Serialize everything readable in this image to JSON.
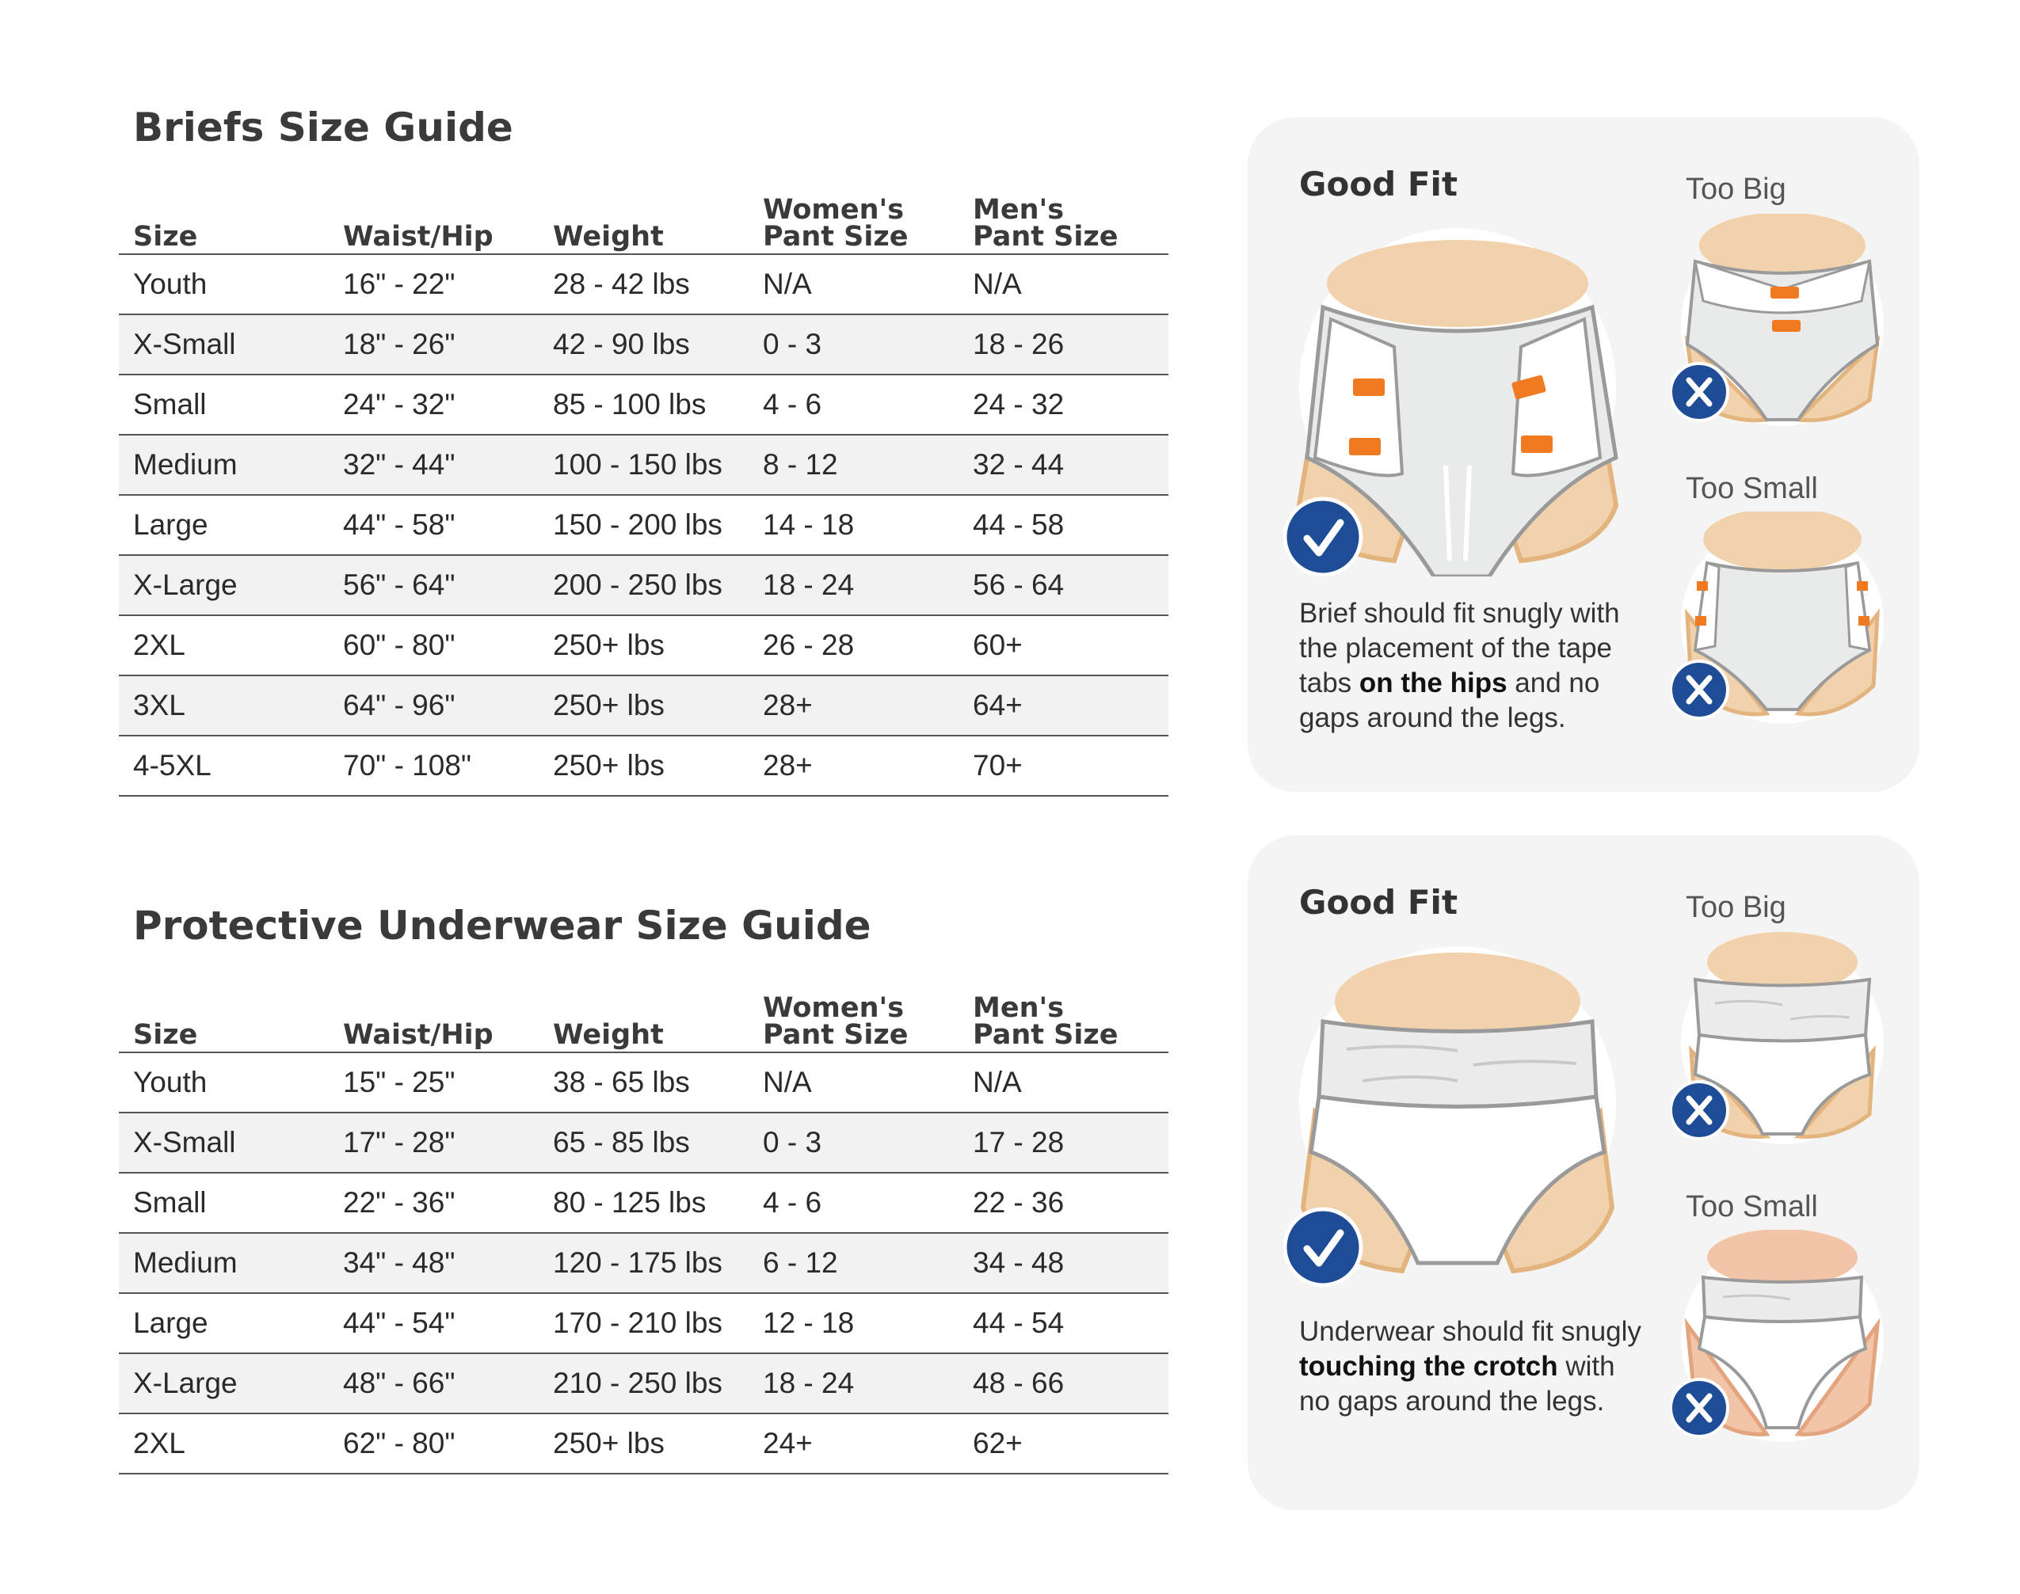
{
  "briefs": {
    "title": "Briefs Size Guide",
    "headers": [
      "Size",
      "Waist/Hip",
      "Weight",
      "Women's Pant Size",
      "Men's Pant Size"
    ],
    "rows": [
      [
        "Youth",
        "16\" - 22\"",
        "28 - 42 lbs",
        "N/A",
        "N/A"
      ],
      [
        "X-Small",
        "18\" - 26\"",
        "42 - 90 lbs",
        "0 - 3",
        "18 - 26"
      ],
      [
        "Small",
        "24\" - 32\"",
        "85 - 100 lbs",
        "4 - 6",
        "24 - 32"
      ],
      [
        "Medium",
        "32\" - 44\"",
        "100 - 150 lbs",
        "8 - 12",
        "32 - 44"
      ],
      [
        "Large",
        "44\" - 58\"",
        "150 - 200 lbs",
        "14 - 18",
        "44 - 58"
      ],
      [
        "X-Large",
        "56\" - 64\"",
        "200 - 250 lbs",
        "18 - 24",
        "56 - 64"
      ],
      [
        "2XL",
        "60\" - 80\"",
        "250+ lbs",
        "26 - 28",
        "60+"
      ],
      [
        "3XL",
        "64\" - 96\"",
        "250+ lbs",
        "28+",
        "64+"
      ],
      [
        "4-5XL",
        "70\" - 108\"",
        "250+ lbs",
        "28+",
        "70+"
      ]
    ]
  },
  "underwear": {
    "title": "Protective Underwear Size Guide",
    "headers": [
      "Size",
      "Waist/Hip",
      "Weight",
      "Women's Pant Size",
      "Men's Pant Size"
    ],
    "rows": [
      [
        "Youth",
        "15\" - 25\"",
        "38 - 65 lbs",
        "N/A",
        "N/A"
      ],
      [
        "X-Small",
        "17\" - 28\"",
        "65 - 85 lbs",
        "0 - 3",
        "17 - 28"
      ],
      [
        "Small",
        "22\" - 36\"",
        "80 - 125 lbs",
        "4 - 6",
        "22 - 36"
      ],
      [
        "Medium",
        "34\" - 48\"",
        "120 - 175 lbs",
        "6 - 12",
        "34 - 48"
      ],
      [
        "Large",
        "44\" - 54\"",
        "170 - 210 lbs",
        "12 - 18",
        "44 - 54"
      ],
      [
        "X-Large",
        "48\" - 66\"",
        "210 - 250 lbs",
        "18 - 24",
        "48 - 66"
      ],
      [
        "2XL",
        "62\" - 80\"",
        "250+ lbs",
        "24+",
        "62+"
      ]
    ]
  },
  "brief_fit": {
    "good_label": "Good Fit",
    "too_big_label": "Too Big",
    "too_small_label": "Too Small",
    "desc_pre": "Brief should fit snugly with the placement of the tape tabs ",
    "desc_bold": "on the hips",
    "desc_post": " and no gaps around the legs.",
    "check_icon": "check-icon",
    "x_icon": "x-icon"
  },
  "underwear_fit": {
    "good_label": "Good Fit",
    "too_big_label": "Too Big",
    "too_small_label": "Too Small",
    "desc_pre": "Underwear should fit snugly ",
    "desc_bold": "touching the crotch",
    "desc_post": " with no gaps around the legs.",
    "check_icon": "check-icon",
    "x_icon": "x-icon"
  },
  "colors": {
    "skin": "#f2d2ac",
    "skin_edge": "#e3b47e",
    "tab": "#f07a22",
    "badge": "#1e4c96",
    "panel": "#f4f4f4"
  }
}
